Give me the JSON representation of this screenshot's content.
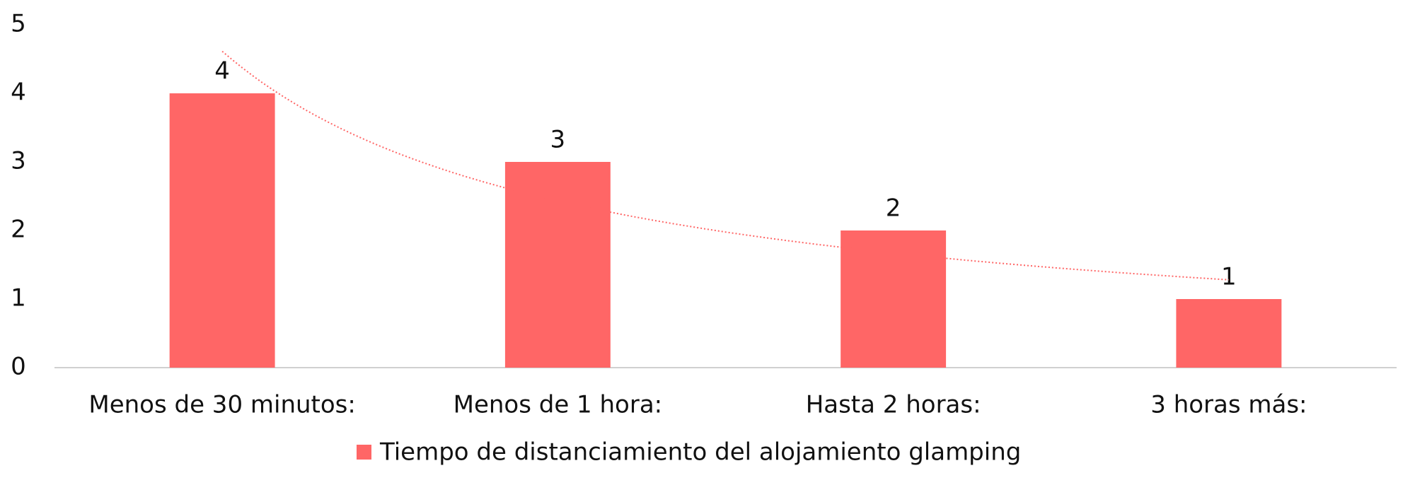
{
  "chart_data": {
    "type": "bar",
    "categories": [
      "Menos de 30 minutos:",
      "Menos de 1 hora:",
      "Hasta 2 horas:",
      "3 horas más:"
    ],
    "series": [
      {
        "name": "Tiempo de distanciamiento del alojamiento glamping",
        "color": "#ff6666",
        "values": [
          4,
          3,
          2,
          1
        ]
      }
    ],
    "ylim": [
      0,
      5
    ],
    "yticks": [
      0,
      1,
      2,
      3,
      4,
      5
    ],
    "grid": false,
    "trendline": "power",
    "legend": "bottom",
    "data_labels": true
  }
}
